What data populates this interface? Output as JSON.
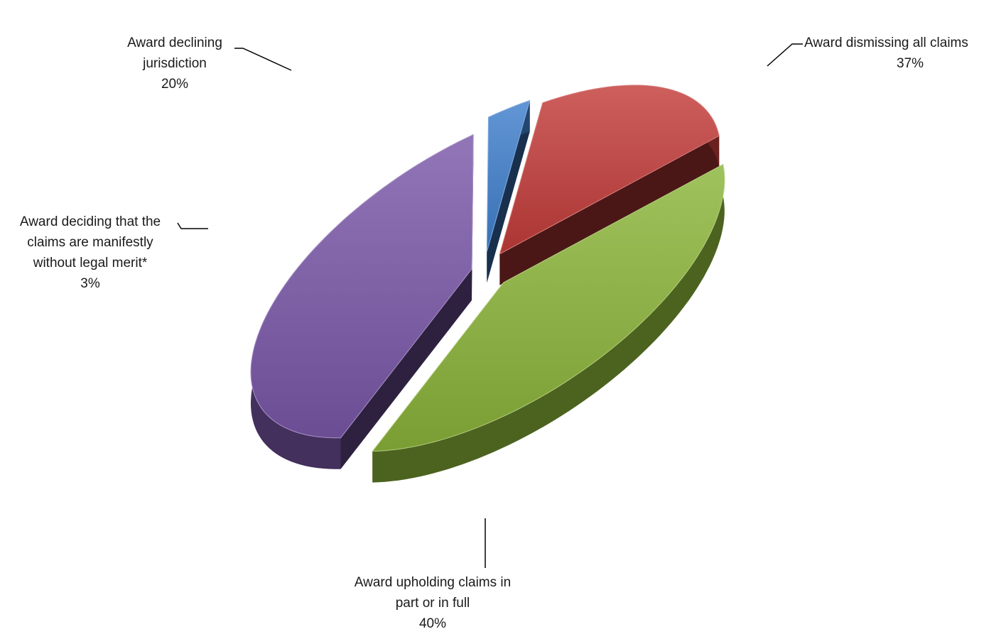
{
  "chart_data": {
    "type": "pie",
    "style": "3d-exploded",
    "title": "",
    "slices": [
      {
        "label_lines": [
          "Award dismissing all claims"
        ],
        "value": 37,
        "value_label": "37%",
        "color": "#8bb43a"
      },
      {
        "label_lines": [
          "Award upholding claims in",
          "part or in full"
        ],
        "value": 40,
        "value_label": "40%",
        "color": "#7a58a8"
      },
      {
        "label_lines": [
          "Award deciding that the",
          "claims are manifestly",
          "without legal merit*"
        ],
        "value": 3,
        "value_label": "3%",
        "color": "#3f7fcc"
      },
      {
        "label_lines": [
          "Award declining",
          "jurisdiction"
        ],
        "value": 20,
        "value_label": "20%",
        "color": "#c23c3a"
      }
    ],
    "legend": "none"
  }
}
